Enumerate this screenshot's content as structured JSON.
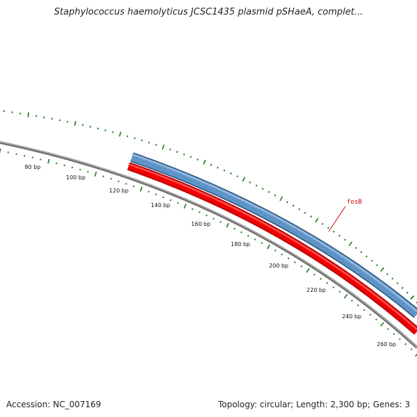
{
  "title": "Staphylococcus haemolyticus JCSC1435 plasmid pSHaeA, complet...",
  "footer": {
    "accession": "Accession: NC_007169",
    "summary": "Topology: circular; Length: 2,300 bp; Genes: 3"
  },
  "map": {
    "ticks": [
      {
        "label": "80 bp"
      },
      {
        "label": "100 bp"
      },
      {
        "label": "120 bp"
      },
      {
        "label": "140 bp"
      },
      {
        "label": "160 bp"
      },
      {
        "label": "180 bp"
      },
      {
        "label": "200 bp"
      },
      {
        "label": "220 bp"
      },
      {
        "label": "240 bp"
      },
      {
        "label": "260 bp"
      }
    ],
    "genes": [
      {
        "name": "fosB",
        "color": "#4a7fb3"
      }
    ],
    "colors": {
      "backbone": "#888888",
      "forward_feature": "#4a7fb3",
      "reverse_feature": "#ee0000",
      "gc_ticks": "#1a7a1a",
      "gene_label": "#cc0000"
    }
  }
}
